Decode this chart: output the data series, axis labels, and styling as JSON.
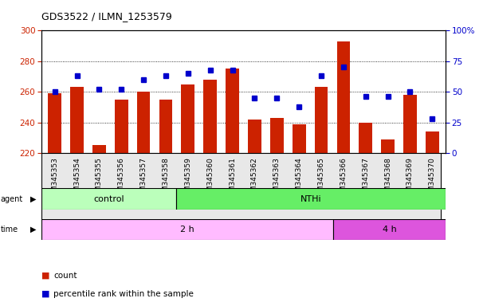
{
  "title": "GDS3522 / ILMN_1253579",
  "samples": [
    "GSM345353",
    "GSM345354",
    "GSM345355",
    "GSM345356",
    "GSM345357",
    "GSM345358",
    "GSM345359",
    "GSM345360",
    "GSM345361",
    "GSM345362",
    "GSM345363",
    "GSM345364",
    "GSM345365",
    "GSM345366",
    "GSM345367",
    "GSM345368",
    "GSM345369",
    "GSM345370"
  ],
  "counts": [
    259,
    263,
    225,
    255,
    260,
    255,
    265,
    268,
    275,
    242,
    243,
    239,
    263,
    293,
    240,
    229,
    258,
    234
  ],
  "percentiles": [
    50,
    63,
    52,
    52,
    60,
    63,
    65,
    68,
    68,
    45,
    45,
    38,
    63,
    70,
    46,
    46,
    50,
    28
  ],
  "ylim_left": [
    220,
    300
  ],
  "ylim_right": [
    0,
    100
  ],
  "yticks_left": [
    220,
    240,
    260,
    280,
    300
  ],
  "yticks_right": [
    0,
    25,
    50,
    75,
    100
  ],
  "bar_color": "#cc2200",
  "dot_color": "#0000cc",
  "grid_color": "#000000",
  "plot_bg": "#ffffff",
  "agent_labels": [
    {
      "label": "control",
      "start": 0,
      "end": 6,
      "color": "#bbffbb"
    },
    {
      "label": "NTHi",
      "start": 6,
      "end": 18,
      "color": "#66ee66"
    }
  ],
  "time_labels": [
    {
      "label": "2 h",
      "start": 0,
      "end": 13,
      "color": "#ffbbff"
    },
    {
      "label": "4 h",
      "start": 13,
      "end": 18,
      "color": "#dd55dd"
    }
  ],
  "legend_count_color": "#cc2200",
  "legend_pct_color": "#0000cc",
  "legend_count_label": "count",
  "legend_pct_label": "percentile rank within the sample"
}
